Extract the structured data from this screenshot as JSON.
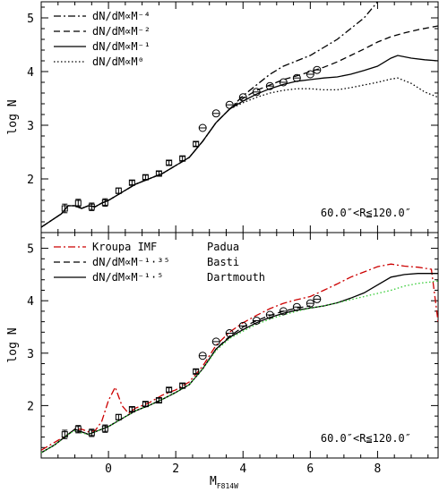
{
  "chart_data": [
    {
      "type": "line",
      "ylabel": "log N",
      "xlim": [
        -2.0,
        9.8
      ],
      "ylim": [
        1.0,
        5.3
      ],
      "yticks": [
        2,
        3,
        4,
        5
      ],
      "xticks": [
        0,
        2,
        4,
        6,
        8
      ],
      "region_label": "60.0″<R≦120.0″",
      "legend_placement": "top-left",
      "legend": [
        {
          "label": "dN/dM∝M⁻⁴",
          "style": "dashdot"
        },
        {
          "label": "dN/dM∝M⁻²",
          "style": "dashed"
        },
        {
          "label": "dN/dM∝M⁻¹",
          "style": "solid"
        },
        {
          "label": "dN/dM∝M⁰",
          "style": "dotted"
        }
      ],
      "series": [
        {
          "style": "dashdot",
          "color": "#000000",
          "x": [
            -2.0,
            -1.4,
            -1.2,
            -1.0,
            -0.8,
            -0.6,
            -0.4,
            -0.2,
            0.0,
            0.4,
            0.8,
            1.2,
            1.6,
            2.0,
            2.4,
            2.8,
            3.2,
            3.6,
            4.0,
            4.4,
            4.8,
            5.2,
            5.6,
            6.0,
            6.4,
            6.8,
            7.2,
            7.6,
            8.0,
            8.4,
            8.8
          ],
          "y": [
            1.1,
            1.35,
            1.5,
            1.5,
            1.45,
            1.5,
            1.48,
            1.55,
            1.6,
            1.75,
            1.9,
            2.0,
            2.1,
            2.25,
            2.4,
            2.7,
            3.05,
            3.3,
            3.55,
            3.75,
            3.95,
            4.1,
            4.2,
            4.3,
            4.45,
            4.6,
            4.8,
            5.0,
            5.3,
            5.6,
            5.9
          ]
        },
        {
          "style": "dashed",
          "color": "#000000",
          "x": [
            -2.0,
            -1.4,
            -1.2,
            -1.0,
            -0.8,
            -0.6,
            -0.4,
            -0.2,
            0.0,
            0.4,
            0.8,
            1.2,
            1.6,
            2.0,
            2.4,
            2.8,
            3.2,
            3.6,
            4.0,
            4.4,
            4.8,
            5.2,
            5.6,
            6.0,
            6.4,
            6.8,
            7.2,
            7.6,
            8.0,
            8.4,
            8.8,
            9.2,
            9.8
          ],
          "y": [
            1.1,
            1.35,
            1.5,
            1.5,
            1.45,
            1.5,
            1.48,
            1.55,
            1.6,
            1.75,
            1.9,
            2.0,
            2.1,
            2.25,
            2.4,
            2.7,
            3.05,
            3.3,
            3.5,
            3.65,
            3.75,
            3.85,
            3.92,
            4.0,
            4.08,
            4.18,
            4.3,
            4.42,
            4.55,
            4.65,
            4.72,
            4.78,
            4.85
          ]
        },
        {
          "style": "solid",
          "color": "#000000",
          "x": [
            -2.0,
            -1.4,
            -1.2,
            -1.0,
            -0.8,
            -0.6,
            -0.4,
            -0.2,
            0.0,
            0.4,
            0.8,
            1.2,
            1.6,
            2.0,
            2.4,
            2.8,
            3.2,
            3.6,
            4.0,
            4.4,
            4.8,
            5.2,
            5.6,
            6.0,
            6.4,
            6.8,
            7.2,
            7.6,
            8.0,
            8.4,
            8.6,
            9.0,
            9.4,
            9.8
          ],
          "y": [
            1.1,
            1.35,
            1.5,
            1.5,
            1.45,
            1.5,
            1.48,
            1.55,
            1.6,
            1.75,
            1.9,
            2.0,
            2.1,
            2.25,
            2.4,
            2.7,
            3.05,
            3.3,
            3.45,
            3.58,
            3.68,
            3.76,
            3.82,
            3.85,
            3.88,
            3.9,
            3.95,
            4.02,
            4.1,
            4.25,
            4.3,
            4.25,
            4.22,
            4.2
          ]
        },
        {
          "style": "dotted",
          "color": "#000000",
          "x": [
            -2.0,
            -1.4,
            -1.2,
            -1.0,
            -0.8,
            -0.6,
            -0.4,
            -0.2,
            0.0,
            0.4,
            0.8,
            1.2,
            1.6,
            2.0,
            2.4,
            2.8,
            3.2,
            3.6,
            4.0,
            4.4,
            4.8,
            5.2,
            5.6,
            6.0,
            6.4,
            6.8,
            7.2,
            7.6,
            8.0,
            8.4,
            8.6,
            9.0,
            9.4,
            9.8
          ],
          "y": [
            1.1,
            1.35,
            1.5,
            1.5,
            1.45,
            1.5,
            1.48,
            1.55,
            1.6,
            1.75,
            1.9,
            2.0,
            2.1,
            2.25,
            2.4,
            2.7,
            3.05,
            3.3,
            3.42,
            3.52,
            3.6,
            3.65,
            3.68,
            3.68,
            3.66,
            3.66,
            3.7,
            3.75,
            3.8,
            3.86,
            3.88,
            3.78,
            3.62,
            3.52
          ]
        }
      ],
      "points": {
        "marker": "circle",
        "x": [
          2.8,
          3.2,
          3.6,
          4.0,
          4.4,
          4.8,
          5.2,
          5.6,
          6.0
        ],
        "y": [
          2.95,
          3.22,
          3.38,
          3.52,
          3.62,
          3.73,
          3.8,
          3.88,
          3.95
        ]
      },
      "points_extra": {
        "marker": "circle",
        "x": [
          6.2
        ],
        "y": [
          4.03
        ]
      },
      "points_square": {
        "marker": "square",
        "x": [
          -1.3,
          -0.9,
          -0.5,
          -0.1,
          0.3,
          0.7,
          1.1,
          1.5,
          1.8,
          2.2,
          2.6
        ],
        "y": [
          1.45,
          1.55,
          1.48,
          1.56,
          1.78,
          1.93,
          2.03,
          2.1,
          2.3,
          2.38,
          2.65
        ],
        "err": [
          0.08,
          0.07,
          0.07,
          0.07,
          0.05,
          0.04,
          0.04,
          0.04,
          0.04,
          0.04,
          0.04
        ]
      }
    },
    {
      "type": "line",
      "xlabel": "MF814W",
      "ylabel": "log N",
      "xlim": [
        -2.0,
        9.8
      ],
      "ylim": [
        1.0,
        5.3
      ],
      "yticks": [
        2,
        3,
        4,
        5
      ],
      "xticks": [
        0,
        2,
        4,
        6,
        8
      ],
      "region_label": "60.0″<R≦120.0″",
      "legend_placement": "top-left",
      "legend": [
        {
          "label": "Kroupa IMF",
          "model": "Padua",
          "style": "dashdot"
        },
        {
          "label": "dN/dM∝M⁻¹·³⁵",
          "model": "Basti",
          "style": "dashed"
        },
        {
          "label": "dN/dM∝M⁻¹·⁵",
          "model": "Dartmouth",
          "style": "solid"
        }
      ],
      "series": [
        {
          "style": "dashdot",
          "color": "#cc0000",
          "x": [
            -2.0,
            -1.6,
            -1.2,
            -1.0,
            -0.8,
            -0.6,
            -0.4,
            -0.2,
            0.0,
            0.2,
            0.4,
            0.6,
            0.8,
            1.2,
            1.6,
            2.0,
            2.4,
            2.8,
            3.2,
            3.6,
            4.0,
            4.4,
            4.8,
            5.2,
            5.6,
            6.0,
            6.4,
            6.8,
            7.2,
            7.6,
            8.0,
            8.4,
            8.8,
            9.2,
            9.6,
            9.8
          ],
          "y": [
            1.15,
            1.3,
            1.45,
            1.55,
            1.55,
            1.5,
            1.52,
            1.7,
            2.1,
            2.35,
            2.0,
            1.85,
            1.95,
            2.05,
            2.2,
            2.3,
            2.45,
            2.75,
            3.15,
            3.4,
            3.58,
            3.72,
            3.85,
            3.95,
            4.02,
            4.08,
            4.2,
            4.32,
            4.45,
            4.55,
            4.65,
            4.7,
            4.66,
            4.64,
            4.6,
            3.6
          ]
        },
        {
          "style": "dashed",
          "color": "#000000",
          "x": [
            -2.0,
            -1.6,
            -1.2,
            -1.0,
            -0.8,
            -0.6,
            -0.4,
            -0.2,
            0.0,
            0.4,
            0.8,
            1.2,
            1.6,
            2.0,
            2.4,
            2.8,
            3.2,
            3.6,
            4.0,
            4.4,
            4.8,
            5.2,
            5.6,
            6.0
          ],
          "y": [
            1.1,
            1.25,
            1.45,
            1.55,
            1.5,
            1.45,
            1.5,
            1.55,
            1.6,
            1.75,
            1.9,
            2.0,
            2.12,
            2.25,
            2.4,
            2.7,
            3.08,
            3.32,
            3.5,
            3.62,
            3.72,
            3.8,
            3.86,
            3.9
          ]
        },
        {
          "style": "solid",
          "color": "#000000",
          "x": [
            -2.0,
            -1.6,
            -1.2,
            -1.0,
            -0.8,
            -0.6,
            -0.4,
            -0.2,
            0.0,
            0.4,
            0.8,
            1.2,
            1.6,
            2.0,
            2.4,
            2.8,
            3.2,
            3.6,
            4.0,
            4.4,
            4.8,
            5.2,
            5.6,
            6.0,
            6.4,
            6.8,
            7.2,
            7.6,
            8.0,
            8.4,
            8.8,
            9.2,
            9.6,
            9.8
          ],
          "y": [
            1.1,
            1.25,
            1.45,
            1.55,
            1.5,
            1.45,
            1.5,
            1.55,
            1.6,
            1.75,
            1.9,
            2.0,
            2.12,
            2.25,
            2.4,
            2.7,
            3.08,
            3.3,
            3.45,
            3.58,
            3.68,
            3.76,
            3.82,
            3.86,
            3.9,
            3.96,
            4.05,
            4.15,
            4.3,
            4.45,
            4.5,
            4.52,
            4.52,
            4.52
          ]
        },
        {
          "style": "dotted",
          "color": "#33cc33",
          "x": [
            -2.0,
            -1.6,
            -1.2,
            -1.0,
            -0.8,
            -0.6,
            -0.4,
            -0.2,
            0.0,
            0.4,
            0.8,
            1.2,
            1.6,
            2.0,
            2.4,
            2.8,
            3.2,
            3.6,
            4.0,
            4.4,
            4.8,
            5.2,
            5.6,
            6.0,
            6.4,
            6.8,
            7.2,
            7.6,
            8.0,
            8.4,
            8.8,
            9.2,
            9.6,
            9.8
          ],
          "y": [
            1.1,
            1.25,
            1.45,
            1.52,
            1.48,
            1.45,
            1.5,
            1.55,
            1.6,
            1.75,
            1.9,
            2.0,
            2.12,
            2.25,
            2.4,
            2.7,
            3.05,
            3.28,
            3.42,
            3.55,
            3.65,
            3.73,
            3.8,
            3.86,
            3.9,
            3.96,
            4.02,
            4.08,
            4.14,
            4.2,
            4.28,
            4.33,
            4.36,
            4.38
          ]
        }
      ],
      "points": {
        "marker": "circle",
        "x": [
          2.8,
          3.2,
          3.6,
          4.0,
          4.4,
          4.8,
          5.2,
          5.6,
          6.0
        ],
        "y": [
          2.95,
          3.22,
          3.38,
          3.52,
          3.62,
          3.73,
          3.8,
          3.88,
          3.95
        ]
      },
      "points_extra": {
        "marker": "circle",
        "x": [
          6.2
        ],
        "y": [
          4.03
        ]
      },
      "points_square": {
        "marker": "square",
        "x": [
          -1.3,
          -0.9,
          -0.5,
          -0.1,
          0.3,
          0.7,
          1.1,
          1.5,
          1.8,
          2.2,
          2.6
        ],
        "y": [
          1.45,
          1.55,
          1.48,
          1.56,
          1.78,
          1.93,
          2.03,
          2.1,
          2.3,
          2.38,
          2.65
        ],
        "err": [
          0.08,
          0.07,
          0.07,
          0.07,
          0.05,
          0.04,
          0.04,
          0.04,
          0.04,
          0.04,
          0.04
        ]
      }
    }
  ],
  "xlabel_main": "M",
  "xlabel_sub": "F814W"
}
